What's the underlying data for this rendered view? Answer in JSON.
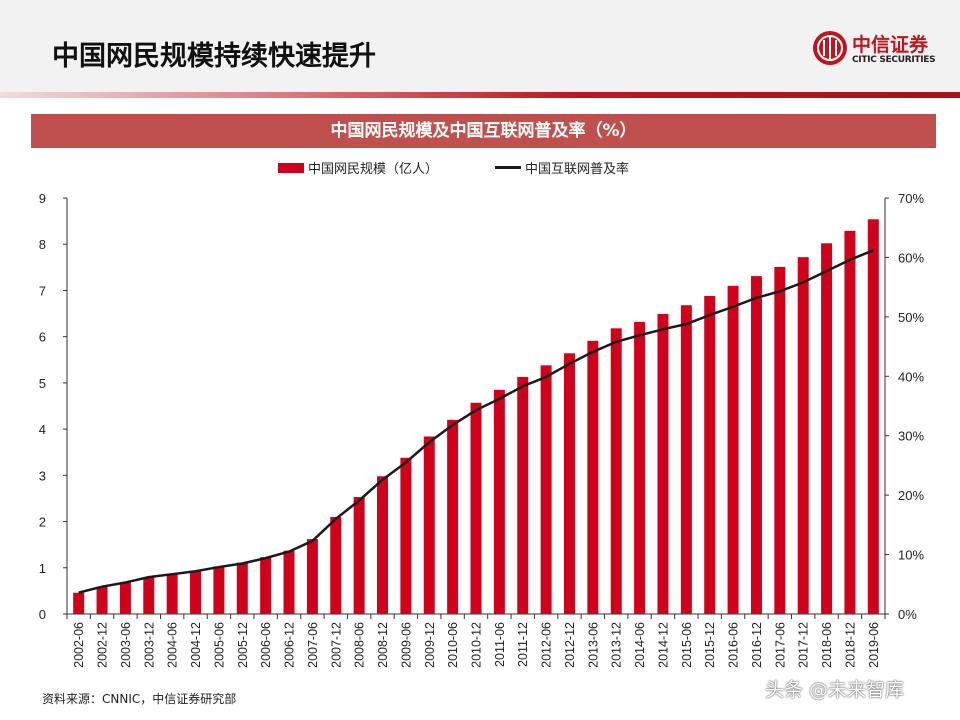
{
  "header": {
    "title": "中国网民规模持续快速提升",
    "logo_cn": "中信证券",
    "logo_en": "CITIC SECURITIES"
  },
  "chart_data": {
    "type": "bar+line",
    "title": "中国网民规模及中国互联网普及率（%）",
    "legend_position": "top",
    "categories": [
      "2002-06",
      "2002-12",
      "2003-06",
      "2003-12",
      "2004-06",
      "2004-12",
      "2005-06",
      "2005-12",
      "2006-06",
      "2006-12",
      "2007-06",
      "2007-12",
      "2008-06",
      "2008-12",
      "2009-06",
      "2009-12",
      "2010-06",
      "2010-12",
      "2011-06",
      "2011-12",
      "2012-06",
      "2012-12",
      "2013-06",
      "2013-12",
      "2014-06",
      "2014-12",
      "2015-06",
      "2015-12",
      "2016-06",
      "2016-12",
      "2017-06",
      "2017-12",
      "2018-06",
      "2018-12",
      "2019-06"
    ],
    "series": [
      {
        "name": "中国网民规模（亿人）",
        "type": "bar",
        "axis": "left",
        "color": "#d0021b",
        "values": [
          0.46,
          0.59,
          0.68,
          0.8,
          0.87,
          0.94,
          1.03,
          1.11,
          1.23,
          1.37,
          1.62,
          2.1,
          2.53,
          2.98,
          3.38,
          3.84,
          4.2,
          4.57,
          4.85,
          5.13,
          5.38,
          5.64,
          5.91,
          6.18,
          6.32,
          6.49,
          6.68,
          6.88,
          7.1,
          7.31,
          7.51,
          7.72,
          8.02,
          8.29,
          8.54
        ]
      },
      {
        "name": "中国互联网普及率",
        "type": "line",
        "axis": "right",
        "color": "#1a1a1a",
        "values": [
          3.6,
          4.6,
          5.3,
          6.2,
          6.7,
          7.2,
          7.9,
          8.5,
          9.4,
          10.5,
          12.3,
          16.0,
          19.1,
          22.6,
          25.5,
          28.9,
          31.8,
          34.3,
          36.2,
          38.3,
          39.9,
          42.1,
          44.1,
          45.8,
          46.9,
          47.9,
          48.8,
          50.3,
          51.7,
          53.2,
          54.3,
          55.8,
          57.7,
          59.6,
          61.2
        ]
      }
    ],
    "left_axis": {
      "ylim": [
        0,
        9
      ],
      "ticks": [
        "0",
        "1",
        "2",
        "3",
        "4",
        "5",
        "6",
        "7",
        "8",
        "9"
      ]
    },
    "right_axis": {
      "ylim": [
        0,
        70
      ],
      "ticks": [
        "0%",
        "10%",
        "20%",
        "30%",
        "40%",
        "50%",
        "60%",
        "70%"
      ]
    },
    "grid": false
  },
  "footer": {
    "source": "资料来源：CNNIC，中信证券研究部",
    "watermark": "头条 @未来智库"
  }
}
